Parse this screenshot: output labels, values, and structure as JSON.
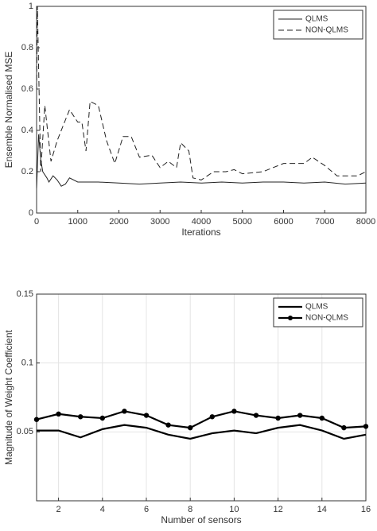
{
  "chart_data": [
    {
      "type": "line",
      "ylabel": "Ensemble Normalised MSE",
      "xlabel": "Iterations",
      "xlim": [
        0,
        8000
      ],
      "xticks": [
        0,
        1000,
        2000,
        3000,
        4000,
        5000,
        6000,
        7000,
        8000
      ],
      "ylim": [
        0,
        1
      ],
      "yticks": [
        0,
        0.2,
        0.4,
        0.6,
        0.8,
        1
      ],
      "grid": false,
      "legend": "upper right",
      "series": [
        {
          "name": "QLMS",
          "color": "#222222",
          "dash": "solid",
          "x": [
            0,
            50,
            100,
            150,
            250,
            300,
            400,
            500,
            600,
            700,
            800,
            1000,
            1500,
            2000,
            2500,
            3000,
            3500,
            4000,
            4500,
            5000,
            5500,
            6000,
            6500,
            7000,
            7500,
            8000
          ],
          "values": [
            0.12,
            0.38,
            0.26,
            0.2,
            0.17,
            0.15,
            0.18,
            0.16,
            0.13,
            0.14,
            0.17,
            0.15,
            0.15,
            0.145,
            0.14,
            0.145,
            0.15,
            0.145,
            0.15,
            0.145,
            0.15,
            0.15,
            0.145,
            0.15,
            0.14,
            0.145
          ]
        },
        {
          "name": "NON-QLMS",
          "color": "#222222",
          "dash": "dashed",
          "x": [
            0,
            20,
            100,
            200,
            350,
            500,
            800,
            1000,
            1100,
            1200,
            1300,
            1500,
            1700,
            1900,
            2100,
            2300,
            2500,
            2800,
            3000,
            3200,
            3400,
            3500,
            3700,
            3800,
            4000,
            4300,
            4600,
            4800,
            5000,
            5500,
            6000,
            6500,
            6700,
            7000,
            7300,
            7800,
            8000
          ],
          "values": [
            0.6,
            1,
            0.2,
            0.52,
            0.25,
            0.35,
            0.5,
            0.44,
            0.44,
            0.3,
            0.54,
            0.52,
            0.35,
            0.24,
            0.37,
            0.37,
            0.27,
            0.28,
            0.22,
            0.25,
            0.22,
            0.34,
            0.3,
            0.17,
            0.16,
            0.2,
            0.2,
            0.21,
            0.19,
            0.2,
            0.24,
            0.24,
            0.27,
            0.23,
            0.18,
            0.18,
            0.2
          ]
        }
      ]
    },
    {
      "type": "line",
      "ylabel": "Magnitude of Weight Coefficient",
      "xlabel": "Number of sensors",
      "x": [
        1,
        2,
        3,
        4,
        5,
        6,
        7,
        8,
        9,
        10,
        11,
        12,
        13,
        14,
        15,
        16
      ],
      "xlim": [
        1,
        16
      ],
      "xticks": [
        2,
        4,
        6,
        8,
        10,
        12,
        14,
        16
      ],
      "ylim": [
        0,
        0.15
      ],
      "yticks": [
        0.05,
        0.1,
        0.15
      ],
      "grid": true,
      "legend": "upper right",
      "series": [
        {
          "name": "QLMS",
          "color": "#000000",
          "dash": "solid",
          "values": [
            0.051,
            0.051,
            0.046,
            0.052,
            0.055,
            0.053,
            0.048,
            0.045,
            0.049,
            0.051,
            0.049,
            0.053,
            0.055,
            0.051,
            0.045,
            0.048
          ]
        },
        {
          "name": "NON-QLMS",
          "color": "#000000",
          "dash": "solid",
          "marker": "circle",
          "values": [
            0.059,
            0.063,
            0.061,
            0.06,
            0.065,
            0.062,
            0.055,
            0.053,
            0.061,
            0.065,
            0.062,
            0.06,
            0.062,
            0.06,
            0.053,
            0.054
          ]
        }
      ]
    }
  ]
}
